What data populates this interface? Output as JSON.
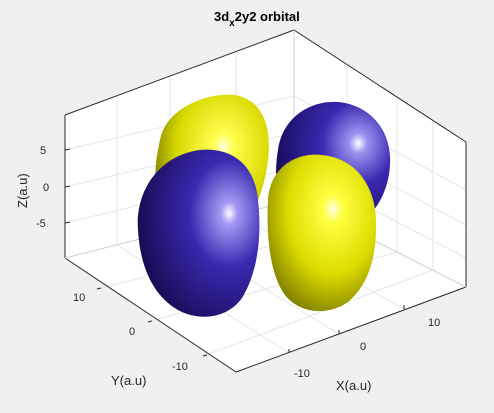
{
  "figure": {
    "title_main": "3d",
    "title_sub": "x",
    "title_rest": "2y2 orbital",
    "background_color": "#f0f0f0",
    "axes_color": "#ffffff",
    "grid": true
  },
  "axes": {
    "xlabel": "X(a.u)",
    "ylabel": "Y(a.u)",
    "zlabel": "Z(a.u)",
    "x_ticks": [
      "-10",
      "0",
      "10"
    ],
    "y_ticks": [
      "-10",
      "0",
      "10"
    ],
    "z_ticks": [
      "5",
      "0",
      "-5"
    ]
  },
  "lobes": {
    "positive_color": "#ffff00",
    "negative_color": "#1a0d80",
    "items": [
      {
        "name": "lobe-back-left",
        "sign": "positive"
      },
      {
        "name": "lobe-back-right",
        "sign": "negative"
      },
      {
        "name": "lobe-front-left",
        "sign": "negative"
      },
      {
        "name": "lobe-front-right",
        "sign": "positive"
      }
    ]
  }
}
